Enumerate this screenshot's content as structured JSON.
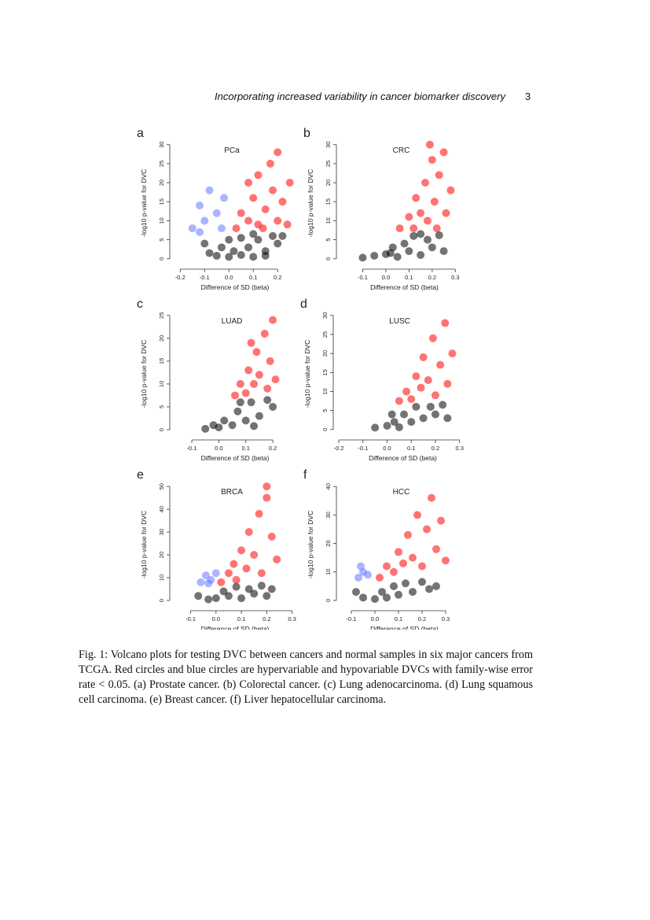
{
  "header": {
    "running_title": "Incorporating increased variability in cancer biomarker discovery",
    "page_number": "3"
  },
  "chart_data": [
    {
      "type": "scatter",
      "label": "a",
      "title": "PCa",
      "xlabel": "Difference of SD (beta)",
      "ylabel": "-log10 p-value for DVC",
      "xlim": [
        -0.23,
        0.28
      ],
      "ylim": [
        -1.9,
        31.2
      ],
      "xticks": [
        -0.2,
        -0.1,
        {
          "value": 0,
          "label": "0.0"
        },
        0.1,
        0.2
      ],
      "yticks": [
        0,
        5,
        10,
        15,
        20,
        25,
        30
      ],
      "series": [
        {
          "color": "#000000",
          "x": [
            -0.1,
            -0.08,
            -0.05,
            0,
            0.02,
            0.05,
            0.08,
            0.1,
            0.12,
            0.15,
            0.18,
            0.2,
            0.22,
            0,
            -0.03,
            0.05,
            0.1,
            0.15
          ],
          "y": [
            4,
            1.5,
            0.8,
            0.5,
            2,
            1,
            3,
            0.5,
            5,
            2,
            6,
            4,
            6,
            5,
            3,
            5.5,
            6.5,
            0.8
          ]
        },
        {
          "color": "#ff0000",
          "x": [
            0.03,
            0.05,
            0.08,
            0.1,
            0.12,
            0.12,
            0.15,
            0.17,
            0.18,
            0.2,
            0.2,
            0.22,
            0.25,
            0.08,
            0.14,
            0.24
          ],
          "y": [
            8,
            12,
            10,
            16,
            9,
            22,
            13,
            25,
            18,
            10,
            28,
            15,
            20,
            20,
            8,
            9
          ]
        },
        {
          "color": "#6677ff",
          "x": [
            -0.15,
            -0.12,
            -0.1,
            -0.08,
            -0.05,
            -0.03,
            -0.02,
            -0.12
          ],
          "y": [
            8,
            14,
            10,
            18,
            12,
            8,
            16,
            7
          ]
        }
      ]
    },
    {
      "type": "scatter",
      "label": "b",
      "title": "CRC",
      "xlabel": "Difference of SD (beta)",
      "ylabel": "-log10 p-value for DVC",
      "xlim": [
        -0.2,
        0.36
      ],
      "ylim": [
        -1.9,
        31.2
      ],
      "xticks": [
        -0.1,
        {
          "value": 0,
          "label": "0.0"
        },
        0.1,
        0.2,
        0.3
      ],
      "yticks": [
        0,
        5,
        10,
        15,
        20,
        25,
        30
      ],
      "series": [
        {
          "color": "#000000",
          "x": [
            -0.1,
            -0.05,
            0,
            0.03,
            0.05,
            0.08,
            0.1,
            0.12,
            0.15,
            0.18,
            0.2,
            0.23,
            0.25,
            0.15,
            0.02
          ],
          "y": [
            0.3,
            0.8,
            1.2,
            3,
            0.5,
            4,
            2,
            6,
            1,
            5,
            3,
            6.2,
            2,
            6.5,
            1.5
          ]
        },
        {
          "color": "#ff0000",
          "x": [
            0.06,
            0.1,
            0.12,
            0.13,
            0.15,
            0.17,
            0.18,
            0.2,
            0.21,
            0.23,
            0.25,
            0.26,
            0.28,
            0.22,
            0.19
          ],
          "y": [
            8,
            11,
            8,
            16,
            12,
            20,
            10,
            26,
            15,
            22,
            28,
            12,
            18,
            8,
            30
          ]
        }
      ]
    },
    {
      "type": "scatter",
      "label": "c",
      "title": "LUAD",
      "xlabel": "Difference of SD (beta)",
      "ylabel": "-log10 p-value for DVC",
      "xlim": [
        -0.17,
        0.29
      ],
      "ylim": [
        -1.55,
        26
      ],
      "xticks": [
        -0.1,
        {
          "value": 0,
          "label": "0.0"
        },
        0.1,
        0.2
      ],
      "yticks": [
        0,
        5,
        10,
        15,
        20,
        25
      ],
      "series": [
        {
          "color": "#000000",
          "x": [
            -0.05,
            0,
            0.02,
            0.05,
            0.07,
            0.1,
            0.12,
            0.15,
            0.18,
            0.2,
            0.08,
            0.13,
            -0.02
          ],
          "y": [
            0.2,
            0.5,
            2,
            1,
            4,
            2,
            6,
            3,
            6.5,
            5,
            6,
            0.8,
            1
          ]
        },
        {
          "color": "#ff0000",
          "x": [
            0.06,
            0.08,
            0.1,
            0.11,
            0.13,
            0.14,
            0.15,
            0.17,
            0.18,
            0.19,
            0.2,
            0.21,
            0.12
          ],
          "y": [
            7.5,
            10,
            8,
            13,
            10,
            17,
            12,
            21,
            9,
            15,
            24,
            11,
            19
          ]
        }
      ]
    },
    {
      "type": "scatter",
      "label": "d",
      "title": "LUSC",
      "xlabel": "Difference of SD (beta)",
      "ylabel": "-log10 p-value for DVC",
      "xlim": [
        -0.21,
        0.34
      ],
      "ylim": [
        -1.9,
        31.2
      ],
      "xticks": [
        -0.2,
        -0.1,
        {
          "value": 0,
          "label": "0.0"
        },
        0.1,
        0.2,
        0.3
      ],
      "yticks": [
        0,
        5,
        10,
        15,
        20,
        25,
        30
      ],
      "series": [
        {
          "color": "#000000",
          "x": [
            -0.05,
            0,
            0.03,
            0.05,
            0.07,
            0.1,
            0.12,
            0.15,
            0.18,
            0.2,
            0.23,
            0.25,
            0.02
          ],
          "y": [
            0.5,
            1,
            2,
            0.6,
            4,
            2,
            6,
            3,
            6,
            4,
            6.5,
            3,
            4
          ]
        },
        {
          "color": "#ff0000",
          "x": [
            0.05,
            0.08,
            0.1,
            0.12,
            0.14,
            0.15,
            0.17,
            0.19,
            0.2,
            0.22,
            0.24,
            0.25,
            0.27
          ],
          "y": [
            7.5,
            10,
            8,
            14,
            11,
            19,
            13,
            24,
            9,
            17,
            28,
            12,
            20
          ]
        }
      ]
    },
    {
      "type": "scatter",
      "label": "e",
      "title": "BRCA",
      "xlabel": "Difference of SD (beta)",
      "ylabel": "-log10 p-value for DVC",
      "xlim": [
        -0.17,
        0.32
      ],
      "ylim": [
        -3.1,
        52.1
      ],
      "xticks": [
        -0.1,
        {
          "value": 0,
          "label": "0.0"
        },
        0.1,
        0.2,
        0.3
      ],
      "yticks": [
        0,
        10,
        20,
        30,
        40,
        50
      ],
      "series": [
        {
          "color": "#000000",
          "x": [
            -0.07,
            -0.03,
            0,
            0.03,
            0.05,
            0.08,
            0.1,
            0.13,
            0.15,
            0.18,
            0.2,
            0.22
          ],
          "y": [
            2,
            0.5,
            1,
            4,
            2,
            6,
            1,
            5,
            3,
            6.5,
            2,
            5
          ]
        },
        {
          "color": "#ff0000",
          "x": [
            0.02,
            0.05,
            0.07,
            0.08,
            0.1,
            0.12,
            0.13,
            0.15,
            0.17,
            0.18,
            0.2,
            0.22,
            0.24,
            0.2
          ],
          "y": [
            8,
            12,
            16,
            9,
            22,
            14,
            30,
            20,
            38,
            12,
            45,
            28,
            18,
            50
          ]
        },
        {
          "color": "#6677ff",
          "x": [
            -0.06,
            -0.04,
            -0.02,
            0,
            -0.03
          ],
          "y": [
            8,
            11,
            9,
            12,
            7.5
          ]
        }
      ]
    },
    {
      "type": "scatter",
      "label": "f",
      "title": "HCC",
      "xlabel": "Difference of SD (beta)",
      "ylabel": "-log10 p-value for DVC",
      "xlim": [
        -0.15,
        0.4
      ],
      "ylim": [
        -2.5,
        41.7
      ],
      "xticks": [
        -0.1,
        {
          "value": 0,
          "label": "0.0"
        },
        0.1,
        0.2,
        0.3
      ],
      "yticks": [
        0,
        10,
        20,
        30,
        40
      ],
      "series": [
        {
          "color": "#000000",
          "x": [
            -0.08,
            -0.05,
            0,
            0.03,
            0.05,
            0.08,
            0.1,
            0.13,
            0.16,
            0.2,
            0.23,
            0.26
          ],
          "y": [
            3,
            1,
            0.5,
            3,
            1,
            5,
            2,
            6,
            3,
            6.5,
            4,
            5
          ]
        },
        {
          "color": "#ff0000",
          "x": [
            0.02,
            0.05,
            0.08,
            0.1,
            0.12,
            0.14,
            0.16,
            0.18,
            0.2,
            0.22,
            0.24,
            0.26,
            0.28,
            0.3
          ],
          "y": [
            8,
            12,
            10,
            17,
            13,
            23,
            15,
            30,
            12,
            25,
            36,
            18,
            28,
            14
          ]
        },
        {
          "color": "#6677ff",
          "x": [
            -0.07,
            -0.05,
            -0.03,
            -0.06
          ],
          "y": [
            8,
            10,
            9,
            12
          ]
        }
      ]
    }
  ],
  "caption": "Fig. 1: Volcano plots for testing DVC between cancers and normal samples in six major cancers from TCGA. Red circles and blue circles are hypervariable and hypovariable DVCs with family-wise error rate < 0.05. (a) Prostate cancer. (b) Colorectal cancer. (c) Lung adenocarcinoma. (d) Lung squamous cell carcinoma. (e) Breast cancer. (f) Liver hepatocellular carcinoma."
}
